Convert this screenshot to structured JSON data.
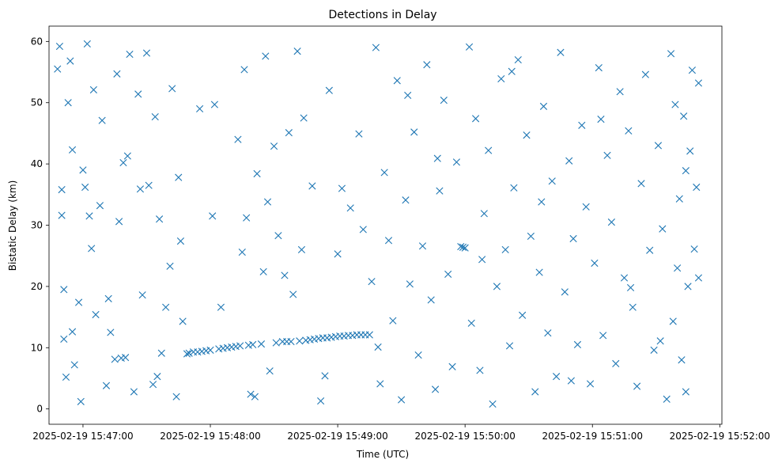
{
  "chart_data": {
    "type": "scatter",
    "title": "Detections in Delay",
    "xlabel": "Time (UTC)",
    "ylabel": "Bistatic Delay (km)",
    "x_tick_labels": [
      "2025-02-19 15:47:00",
      "2025-02-19 15:48:00",
      "2025-02-19 15:49:00",
      "2025-02-19 15:50:00",
      "2025-02-19 15:51:00",
      "2025-02-19 15:52:00"
    ],
    "y_ticks": [
      0,
      10,
      20,
      30,
      40,
      50,
      60
    ],
    "xlim": [
      "2025-02-19 15:46:44",
      "2025-02-19 15:52:01"
    ],
    "ylim": [
      -2.5,
      62.5
    ],
    "marker": "x",
    "color": "#1f77b4",
    "grid": false,
    "series": [
      {
        "points": [
          [
            "15:46:48",
            55.5
          ],
          [
            "15:46:49",
            59.2
          ],
          [
            "15:46:50",
            35.8
          ],
          [
            "15:46:50",
            31.6
          ],
          [
            "15:46:51",
            19.5
          ],
          [
            "15:46:51",
            11.4
          ],
          [
            "15:46:52",
            5.2
          ],
          [
            "15:46:53",
            50.0
          ],
          [
            "15:46:54",
            56.8
          ],
          [
            "15:46:55",
            42.3
          ],
          [
            "15:46:55",
            12.6
          ],
          [
            "15:46:56",
            7.2
          ],
          [
            "15:46:58",
            17.4
          ],
          [
            "15:46:59",
            1.2
          ],
          [
            "15:47:00",
            39.0
          ],
          [
            "15:47:01",
            36.2
          ],
          [
            "15:47:02",
            59.6
          ],
          [
            "15:47:03",
            31.5
          ],
          [
            "15:47:05",
            52.1
          ],
          [
            "15:47:06",
            15.4
          ],
          [
            "15:47:08",
            33.2
          ],
          [
            "15:47:09",
            47.1
          ],
          [
            "15:47:11",
            3.8
          ],
          [
            "15:47:12",
            18.0
          ],
          [
            "15:47:13",
            12.5
          ],
          [
            "15:47:15",
            8.1
          ],
          [
            "15:47:16",
            54.7
          ],
          [
            "15:47:17",
            30.6
          ],
          [
            "15:47:18",
            8.3
          ],
          [
            "15:47:19",
            40.2
          ],
          [
            "15:47:20",
            8.4
          ],
          [
            "15:47:22",
            57.9
          ],
          [
            "15:47:24",
            2.8
          ],
          [
            "15:47:26",
            51.4
          ],
          [
            "15:47:27",
            35.9
          ],
          [
            "15:47:28",
            18.6
          ],
          [
            "15:47:30",
            58.1
          ],
          [
            "15:47:31",
            36.5
          ],
          [
            "15:47:33",
            4.0
          ],
          [
            "15:47:34",
            47.7
          ],
          [
            "15:47:36",
            31.0
          ],
          [
            "15:47:37",
            9.1
          ],
          [
            "15:47:39",
            16.6
          ],
          [
            "15:47:41",
            23.3
          ],
          [
            "15:47:42",
            52.3
          ],
          [
            "15:47:44",
            2.0
          ],
          [
            "15:47:45",
            37.8
          ],
          [
            "15:47:47",
            14.3
          ],
          [
            "15:47:49",
            9.0
          ],
          [
            "15:47:50",
            9.1
          ],
          [
            "15:47:52",
            9.3
          ],
          [
            "15:47:54",
            9.3
          ],
          [
            "15:47:56",
            9.4
          ],
          [
            "15:47:58",
            9.5
          ],
          [
            "15:48:00",
            9.6
          ],
          [
            "15:48:01",
            31.5
          ],
          [
            "15:48:02",
            49.7
          ],
          [
            "15:48:04",
            9.8
          ],
          [
            "15:48:06",
            9.9
          ],
          [
            "15:48:08",
            10.0
          ],
          [
            "15:48:10",
            10.1
          ],
          [
            "15:48:12",
            10.2
          ],
          [
            "15:48:13",
            44.0
          ],
          [
            "15:48:14",
            10.3
          ],
          [
            "15:48:15",
            25.6
          ],
          [
            "15:48:16",
            55.4
          ],
          [
            "15:48:17",
            31.2
          ],
          [
            "15:48:18",
            10.4
          ],
          [
            "15:48:20",
            10.5
          ],
          [
            "15:48:21",
            2.0
          ],
          [
            "15:48:22",
            38.4
          ],
          [
            "15:48:24",
            10.6
          ],
          [
            "15:48:25",
            22.4
          ],
          [
            "15:48:26",
            57.6
          ],
          [
            "15:48:28",
            6.2
          ],
          [
            "15:48:30",
            42.9
          ],
          [
            "15:48:31",
            10.8
          ],
          [
            "15:48:32",
            28.3
          ],
          [
            "15:48:34",
            11.0
          ],
          [
            "15:48:36",
            11.0
          ],
          [
            "15:48:37",
            45.1
          ],
          [
            "15:48:38",
            11.0
          ],
          [
            "15:48:39",
            18.7
          ],
          [
            "15:48:41",
            58.4
          ],
          [
            "15:48:42",
            11.1
          ],
          [
            "15:48:43",
            26.0
          ],
          [
            "15:48:45",
            11.2
          ],
          [
            "15:48:47",
            11.3
          ],
          [
            "15:48:48",
            36.4
          ],
          [
            "15:48:49",
            11.4
          ],
          [
            "15:48:51",
            11.5
          ],
          [
            "15:48:52",
            1.3
          ],
          [
            "15:48:53",
            11.6
          ],
          [
            "15:48:55",
            11.6
          ],
          [
            "15:48:56",
            52.0
          ],
          [
            "15:48:57",
            11.7
          ],
          [
            "15:48:59",
            11.8
          ],
          [
            "15:49:00",
            25.3
          ],
          [
            "15:49:01",
            11.9
          ],
          [
            "15:49:03",
            11.9
          ],
          [
            "15:49:05",
            12.0
          ],
          [
            "15:49:06",
            32.8
          ],
          [
            "15:49:07",
            12.0
          ],
          [
            "15:49:09",
            12.1
          ],
          [
            "15:49:10",
            44.9
          ],
          [
            "15:49:11",
            12.1
          ],
          [
            "15:49:13",
            12.1
          ],
          [
            "15:49:15",
            12.1
          ],
          [
            "15:49:16",
            20.8
          ],
          [
            "15:49:18",
            59.0
          ],
          [
            "15:49:20",
            4.1
          ],
          [
            "15:49:22",
            38.6
          ],
          [
            "15:49:24",
            27.5
          ],
          [
            "15:49:26",
            14.4
          ],
          [
            "15:49:28",
            53.6
          ],
          [
            "15:49:30",
            1.5
          ],
          [
            "15:49:32",
            34.1
          ],
          [
            "15:49:34",
            20.4
          ],
          [
            "15:49:36",
            45.2
          ],
          [
            "15:49:38",
            8.8
          ],
          [
            "15:49:40",
            26.6
          ],
          [
            "15:49:42",
            56.2
          ],
          [
            "15:49:44",
            17.8
          ],
          [
            "15:49:46",
            3.2
          ],
          [
            "15:49:48",
            35.6
          ],
          [
            "15:49:50",
            50.4
          ],
          [
            "15:49:52",
            22.0
          ],
          [
            "15:49:54",
            6.9
          ],
          [
            "15:49:56",
            40.3
          ],
          [
            "15:49:58",
            26.5
          ],
          [
            "15:49:59",
            26.4
          ],
          [
            "15:50:00",
            26.3
          ],
          [
            "15:50:02",
            59.1
          ],
          [
            "15:50:03",
            14.0
          ],
          [
            "15:50:05",
            47.4
          ],
          [
            "15:50:07",
            6.3
          ],
          [
            "15:50:09",
            31.9
          ],
          [
            "15:50:11",
            42.2
          ],
          [
            "15:50:13",
            0.8
          ],
          [
            "15:50:15",
            20.0
          ],
          [
            "15:50:17",
            53.9
          ],
          [
            "15:50:19",
            26.0
          ],
          [
            "15:50:21",
            10.3
          ],
          [
            "15:50:23",
            36.1
          ],
          [
            "15:50:25",
            57.0
          ],
          [
            "15:50:27",
            15.3
          ],
          [
            "15:50:29",
            44.7
          ],
          [
            "15:50:31",
            28.2
          ],
          [
            "15:50:33",
            2.8
          ],
          [
            "15:50:35",
            22.3
          ],
          [
            "15:50:37",
            49.4
          ],
          [
            "15:50:39",
            12.4
          ],
          [
            "15:50:41",
            37.2
          ],
          [
            "15:50:43",
            5.3
          ],
          [
            "15:50:45",
            58.2
          ],
          [
            "15:50:47",
            19.1
          ],
          [
            "15:50:49",
            40.5
          ],
          [
            "15:50:51",
            27.8
          ],
          [
            "15:50:53",
            10.5
          ],
          [
            "15:50:55",
            46.3
          ],
          [
            "15:50:57",
            33.0
          ],
          [
            "15:50:59",
            4.1
          ],
          [
            "15:51:01",
            23.8
          ],
          [
            "15:51:03",
            55.7
          ],
          [
            "15:51:05",
            12.0
          ],
          [
            "15:51:07",
            41.4
          ],
          [
            "15:51:09",
            30.5
          ],
          [
            "15:51:11",
            7.4
          ],
          [
            "15:51:13",
            51.8
          ],
          [
            "15:51:15",
            21.4
          ],
          [
            "15:51:17",
            45.4
          ],
          [
            "15:51:19",
            16.6
          ],
          [
            "15:51:21",
            3.7
          ],
          [
            "15:51:23",
            36.8
          ],
          [
            "15:51:25",
            54.6
          ],
          [
            "15:51:27",
            25.9
          ],
          [
            "15:51:29",
            9.6
          ],
          [
            "15:51:31",
            43.0
          ],
          [
            "15:51:33",
            29.4
          ],
          [
            "15:51:35",
            1.6
          ],
          [
            "15:51:37",
            58.0
          ],
          [
            "15:51:38",
            14.3
          ],
          [
            "15:51:39",
            49.7
          ],
          [
            "15:51:40",
            23.0
          ],
          [
            "15:51:41",
            34.3
          ],
          [
            "15:51:42",
            8.0
          ],
          [
            "15:51:43",
            47.8
          ],
          [
            "15:51:44",
            2.8
          ],
          [
            "15:51:45",
            20.0
          ],
          [
            "15:51:46",
            42.1
          ],
          [
            "15:51:47",
            55.3
          ],
          [
            "15:51:48",
            26.1
          ],
          [
            "15:51:49",
            36.2
          ],
          [
            "15:51:50",
            21.4
          ],
          [
            "15:51:50",
            53.2
          ],
          [
            "15:47:04",
            26.2
          ],
          [
            "15:47:21",
            41.3
          ],
          [
            "15:47:35",
            5.3
          ],
          [
            "15:47:46",
            27.4
          ],
          [
            "15:47:55",
            49.0
          ],
          [
            "15:48:05",
            16.6
          ],
          [
            "15:48:19",
            2.4
          ],
          [
            "15:48:27",
            33.8
          ],
          [
            "15:48:35",
            21.8
          ],
          [
            "15:48:44",
            47.5
          ],
          [
            "15:48:54",
            5.4
          ],
          [
            "15:49:02",
            36.0
          ],
          [
            "15:49:12",
            29.3
          ],
          [
            "15:49:19",
            10.1
          ],
          [
            "15:49:33",
            51.2
          ],
          [
            "15:49:47",
            40.9
          ],
          [
            "15:50:08",
            24.4
          ],
          [
            "15:50:22",
            55.1
          ],
          [
            "15:50:36",
            33.8
          ],
          [
            "15:50:50",
            4.6
          ],
          [
            "15:51:04",
            47.3
          ],
          [
            "15:51:18",
            19.8
          ],
          [
            "15:51:32",
            11.1
          ],
          [
            "15:51:44",
            38.9
          ]
        ]
      }
    ]
  }
}
